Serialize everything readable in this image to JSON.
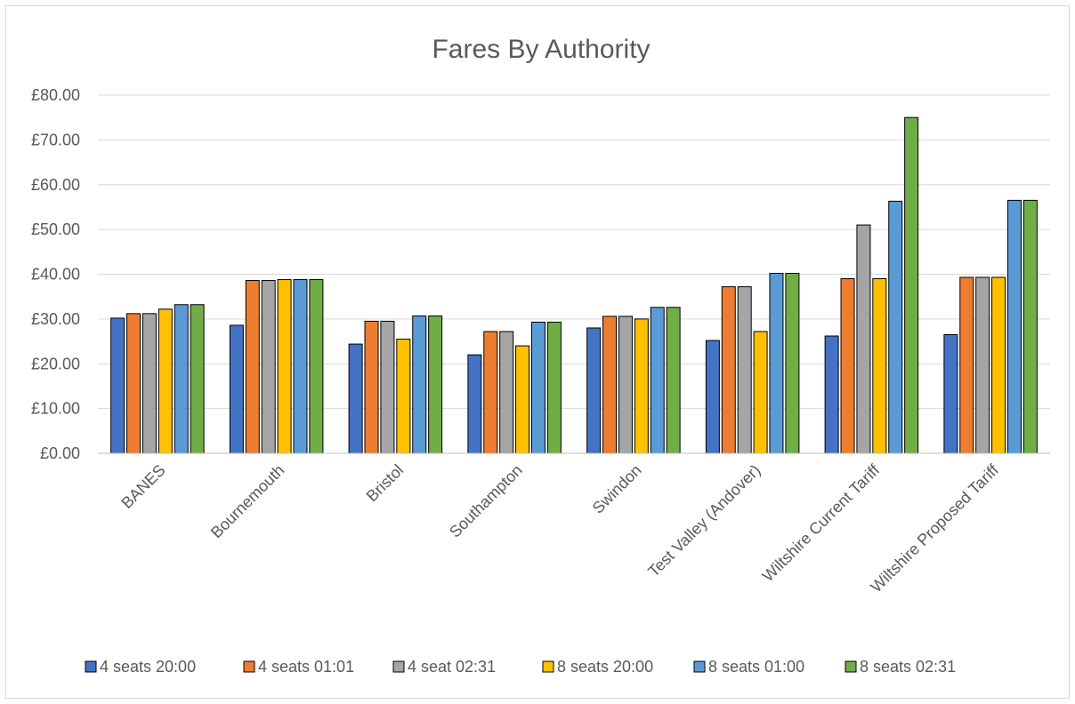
{
  "chart_data": {
    "type": "bar",
    "title": "Fares By Authority",
    "xlabel": "",
    "ylabel": "",
    "ylim": [
      0,
      80
    ],
    "y_ticks": [
      "£0.00",
      "£10.00",
      "£20.00",
      "£30.00",
      "£40.00",
      "£50.00",
      "£60.00",
      "£70.00",
      "£80.00"
    ],
    "grid": true,
    "legend_position": "bottom",
    "categories": [
      "BANES",
      "Bournemouth",
      "Bristol",
      "Southampton",
      "Swindon",
      "Test Valley (Andover)",
      "Wiltshire Current Tariff",
      "Wiltshire Proposed Tariff"
    ],
    "series": [
      {
        "name": "4 seats 20:00",
        "color": "#4472C4",
        "values": [
          30.2,
          28.6,
          24.4,
          22.0,
          28.0,
          25.2,
          26.2,
          26.5
        ]
      },
      {
        "name": "4 seats 01:01",
        "color": "#ED7D31",
        "values": [
          31.2,
          38.6,
          29.5,
          27.2,
          30.6,
          37.2,
          39.0,
          39.3
        ]
      },
      {
        "name": "4 seat 02:31",
        "color": "#A5A5A5",
        "values": [
          31.2,
          38.6,
          29.5,
          27.2,
          30.6,
          37.2,
          51.0,
          39.3
        ]
      },
      {
        "name": "8 seats 20:00",
        "color": "#FFC000",
        "values": [
          32.2,
          38.8,
          25.5,
          24.0,
          30.0,
          27.2,
          39.0,
          39.3
        ]
      },
      {
        "name": "8 seats 01:00",
        "color": "#5B9BD5",
        "values": [
          33.2,
          38.8,
          30.7,
          29.3,
          32.6,
          40.2,
          56.3,
          56.5
        ]
      },
      {
        "name": "8 seats 02:31",
        "color": "#70AD47",
        "values": [
          33.2,
          38.8,
          30.7,
          29.3,
          32.6,
          40.2,
          75.0,
          56.5
        ]
      }
    ]
  }
}
